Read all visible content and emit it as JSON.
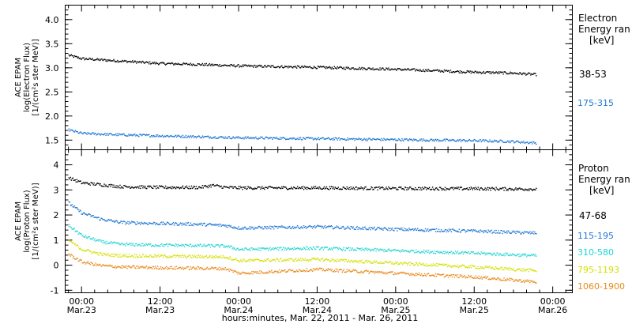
{
  "chart_data": {
    "type": "scatter",
    "xlabel": "hours:minutes, Mar. 22, 2011 - Mar. 26, 2011",
    "x_ticks": [
      {
        "hours": 0,
        "time": "00:00",
        "date": "Mar.23"
      },
      {
        "hours": 12,
        "time": "12:00",
        "date": "Mar.23"
      },
      {
        "hours": 24,
        "time": "00:00",
        "date": "Mar.24"
      },
      {
        "hours": 36,
        "time": "12:00",
        "date": "Mar.24"
      },
      {
        "hours": 48,
        "time": "00:00",
        "date": "Mar.25"
      },
      {
        "hours": 60,
        "time": "12:00",
        "date": "Mar.25"
      },
      {
        "hours": 72,
        "time": "00:00",
        "date": "Mar.26"
      }
    ],
    "xlim_hours_from_mar23": [
      -2.5,
      75
    ],
    "panels": [
      {
        "ylabel": [
          "ACE EPAM",
          "log(Electron Flux)",
          "[1/(cm²s ster MeV)]"
        ],
        "ylim": [
          1.3,
          4.3
        ],
        "yticks": [
          1.5,
          2.0,
          2.5,
          3.0,
          3.5,
          4.0
        ],
        "ytick_labels": [
          "1.5",
          "2.0",
          "2.5",
          "3.0",
          "3.5",
          "4.0"
        ],
        "legend_title": [
          "Electron",
          "Energy ran",
          "[keV]"
        ],
        "series": [
          {
            "name": "38-53",
            "color": "#000000",
            "x": [
              -2,
              0,
              6,
              12,
              18,
              24,
              36,
              48,
              60,
              66,
              69.5
            ],
            "y": [
              3.27,
              3.2,
              3.15,
              3.1,
              3.08,
              3.05,
              3.02,
              2.98,
              2.92,
              2.9,
              2.87
            ]
          },
          {
            "name": "175-315",
            "color": "#1f77d4",
            "x": [
              -2,
              0,
              6,
              12,
              18,
              24,
              36,
              48,
              60,
              66,
              69.5
            ],
            "y": [
              1.72,
              1.65,
              1.62,
              1.6,
              1.58,
              1.56,
              1.54,
              1.52,
              1.5,
              1.48,
              1.45
            ]
          }
        ]
      },
      {
        "ylabel": [
          "ACE EPAM",
          "log(Proton Flux)",
          "[1/(cm²s ster MeV)]"
        ],
        "ylim": [
          -1.1,
          4.6
        ],
        "yticks": [
          -1,
          0,
          1,
          2,
          3,
          4
        ],
        "ytick_labels": [
          "-1",
          "0",
          "1",
          "2",
          "3",
          "4"
        ],
        "legend_title": [
          "Proton",
          "Energy ran",
          "[keV]"
        ],
        "series": [
          {
            "name": "47-68",
            "color": "#000000",
            "x": [
              -2,
              0,
              6,
              12,
              18,
              20,
              22,
              24,
              36,
              48,
              60,
              69.5
            ],
            "y": [
              3.5,
              3.3,
              3.15,
              3.12,
              3.12,
              3.2,
              3.12,
              3.1,
              3.1,
              3.08,
              3.07,
              3.05
            ]
          },
          {
            "name": "115-195",
            "color": "#1f77d4",
            "x": [
              -2,
              0,
              3,
              6,
              12,
              18,
              22,
              24,
              36,
              48,
              60,
              69.5
            ],
            "y": [
              2.5,
              2.1,
              1.85,
              1.72,
              1.68,
              1.65,
              1.6,
              1.5,
              1.55,
              1.45,
              1.38,
              1.3
            ]
          },
          {
            "name": "310-580",
            "color": "#22d4d4",
            "x": [
              -2,
              0,
              3,
              6,
              12,
              18,
              22,
              24,
              36,
              48,
              60,
              69.5
            ],
            "y": [
              1.6,
              1.2,
              0.95,
              0.85,
              0.82,
              0.8,
              0.78,
              0.65,
              0.7,
              0.6,
              0.5,
              0.4
            ]
          },
          {
            "name": "795-1193",
            "color": "#d4e000",
            "x": [
              -2,
              0,
              3,
              6,
              12,
              18,
              22,
              24,
              36,
              48,
              60,
              69.5
            ],
            "y": [
              1.0,
              0.65,
              0.45,
              0.4,
              0.38,
              0.36,
              0.35,
              0.2,
              0.25,
              0.1,
              -0.05,
              -0.2
            ]
          },
          {
            "name": "1060-1900",
            "color": "#e88a1a",
            "x": [
              -2,
              0,
              3,
              6,
              12,
              18,
              22,
              24,
              36,
              48,
              60,
              69.5
            ],
            "y": [
              0.45,
              0.15,
              0.0,
              -0.05,
              -0.08,
              -0.1,
              -0.12,
              -0.3,
              -0.15,
              -0.3,
              -0.45,
              -0.65
            ]
          }
        ]
      }
    ]
  }
}
